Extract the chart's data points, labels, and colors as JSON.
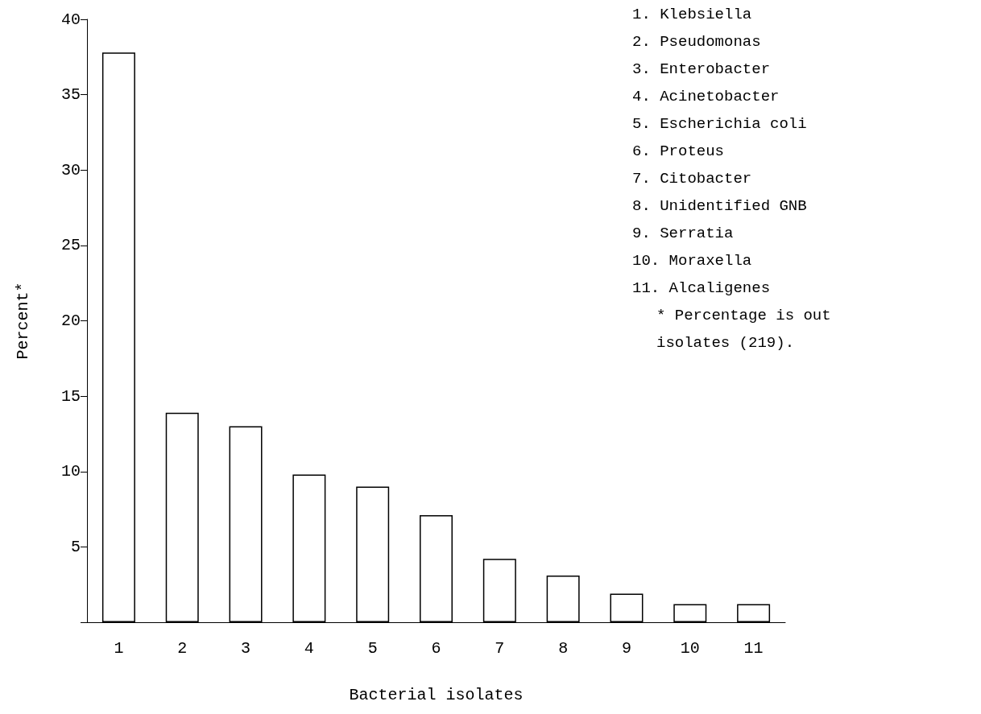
{
  "chart_data": {
    "type": "bar",
    "xlabel": "Bacterial isolates",
    "ylabel": "Percent*",
    "categories": [
      "1",
      "2",
      "3",
      "4",
      "5",
      "6",
      "7",
      "8",
      "9",
      "10",
      "11"
    ],
    "values": [
      37.8,
      13.9,
      13.0,
      9.8,
      9.0,
      7.1,
      4.2,
      3.1,
      1.9,
      1.2,
      1.2
    ],
    "color": "#ffffff",
    "ylim": [
      0,
      40
    ],
    "yticks": [
      {
        "value": 0,
        "label": null
      },
      5,
      10,
      15,
      20,
      25,
      30,
      35,
      40
    ],
    "grid": false,
    "annotations": [
      "1. Klebsiella",
      "2. Pseudomonas",
      "3. Enterobacter",
      "4. Acinetobacter",
      "5. Escherichia coli",
      "6. Proteus",
      "7. Citobacter",
      "8. Unidentified GNB",
      "9. Serratia",
      "10. Moraxella",
      "11. Alcaligenes",
      "* Percentage is out",
      "isolates (219)."
    ]
  }
}
